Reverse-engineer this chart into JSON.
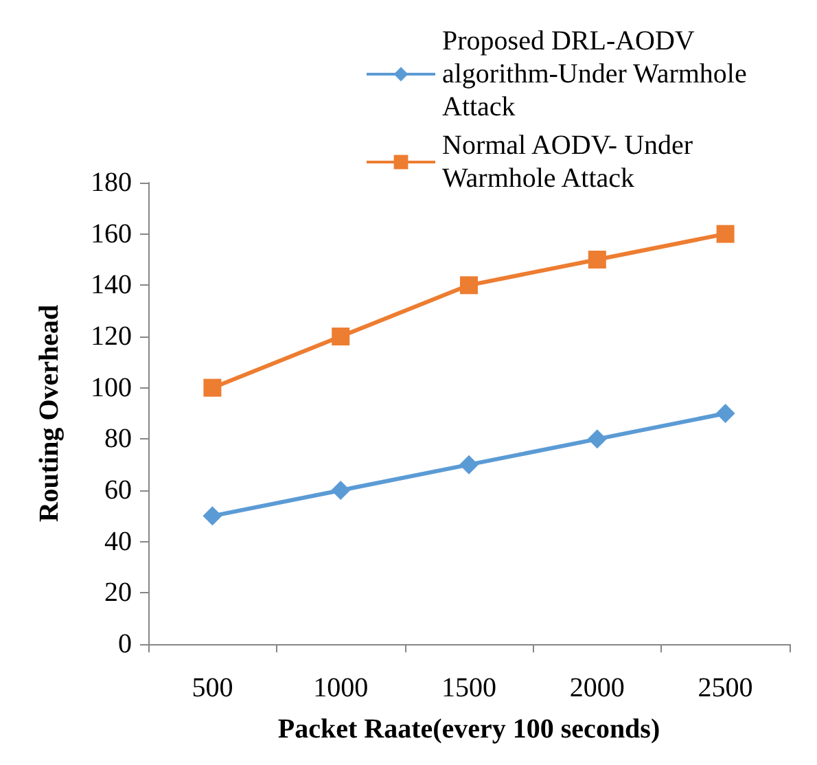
{
  "chart_data": {
    "type": "line",
    "xlabel": "Packet Raate(every 100 seconds)",
    "ylabel": "Routing Overhead",
    "categories": [
      "500",
      "1000",
      "1500",
      "2000",
      "2500"
    ],
    "series": [
      {
        "name": "Proposed DRL-AODV algorithm-Under Warmhole Attack",
        "color": "#5b9bd5",
        "marker": "diamond",
        "values": [
          50,
          60,
          70,
          80,
          90
        ]
      },
      {
        "name": "Normal AODV- Under Warmhole Attack",
        "color": "#ed7d31",
        "marker": "square",
        "values": [
          100,
          120,
          140,
          150,
          160
        ]
      }
    ],
    "ylim": [
      0,
      180
    ],
    "yticks": [
      0,
      20,
      40,
      60,
      80,
      100,
      120,
      140,
      160,
      180
    ],
    "grid": false,
    "legend": "top right",
    "line_style": "solid"
  }
}
